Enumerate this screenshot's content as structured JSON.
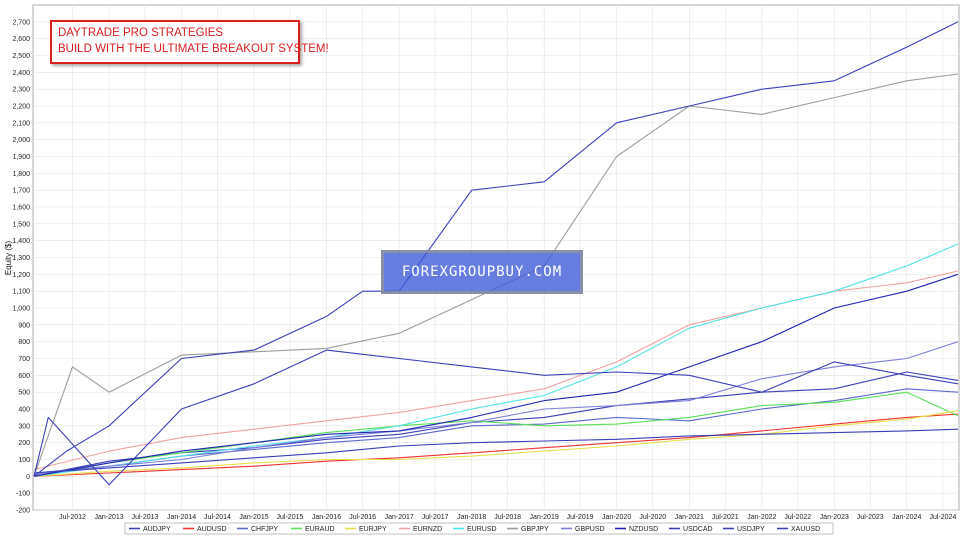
{
  "chart_data": {
    "type": "line",
    "title": "",
    "xlabel": "",
    "ylabel": "Equity ($)",
    "ylim": [
      -200,
      2800
    ],
    "yticks": [
      -200,
      -100,
      0,
      100,
      200,
      300,
      400,
      500,
      600,
      700,
      800,
      900,
      1000,
      1100,
      1200,
      1300,
      1400,
      1500,
      1600,
      1700,
      1800,
      1900,
      2000,
      2100,
      2200,
      2300,
      2400,
      2500,
      2600,
      2700
    ],
    "ytick_labels": [
      "-200",
      "-100",
      "0",
      "100",
      "200",
      "300",
      "400",
      "500",
      "600",
      "700",
      "800",
      "900",
      "1,000",
      "1,100",
      "1,200",
      "1,300",
      "1,400",
      "1,500",
      "1,600",
      "1,700",
      "1,800",
      "1,900",
      "2,000",
      "2,100",
      "2,200",
      "2,300",
      "2,400",
      "2,500",
      "2,600",
      "2,700"
    ],
    "xlim": [
      "2011-12-15",
      "2024-09-20"
    ],
    "xticks": [
      "2012-07-01",
      "2013-01-01",
      "2013-07-01",
      "2014-01-01",
      "2014-07-01",
      "2015-01-01",
      "2015-07-01",
      "2016-01-01",
      "2016-07-01",
      "2017-01-01",
      "2017-07-01",
      "2018-01-01",
      "2018-07-01",
      "2019-01-01",
      "2019-07-01",
      "2020-01-01",
      "2020-07-01",
      "2021-01-01",
      "2021-07-01",
      "2022-01-01",
      "2022-07-01",
      "2023-01-01",
      "2023-07-01",
      "2024-01-01",
      "2024-07-01"
    ],
    "xtick_labels": [
      "Jul-2012",
      "Jan-2013",
      "Jul-2013",
      "Jan-2014",
      "Jul-2014",
      "Jan-2015",
      "Jul-2015",
      "Jan-2016",
      "Jul-2016",
      "Jan-2017",
      "Jul-2017",
      "Jan-2018",
      "Jul-2018",
      "Jan-2019",
      "Jul-2019",
      "Jan-2020",
      "Jul-2020",
      "Jan-2021",
      "Jul-2021",
      "Jan-2022",
      "Jul-2022",
      "Jan-2023",
      "Jul-2023",
      "Jan-2024",
      "Jul-2024"
    ],
    "grid": true,
    "legend_position": "bottom",
    "series": [
      {
        "name": "AUDJPY",
        "color": "#3b3fb8",
        "x": [
          "2011-12-20",
          "2012-06-01",
          "2013-01-01",
          "2014-01-01",
          "2015-01-01",
          "2016-01-01",
          "2017-01-01",
          "2018-01-01",
          "2019-01-01",
          "2020-01-01",
          "2021-01-01",
          "2022-01-01",
          "2023-01-01",
          "2024-01-01",
          "2024-09-15"
        ],
        "values": [
          0,
          40,
          90,
          140,
          170,
          220,
          250,
          320,
          350,
          420,
          460,
          500,
          520,
          620,
          570
        ]
      },
      {
        "name": "AUDUSD",
        "color": "#ee3333",
        "x": [
          "2011-12-20",
          "2013-01-01",
          "2014-01-01",
          "2015-01-01",
          "2016-01-01",
          "2017-01-01",
          "2018-01-01",
          "2019-01-01",
          "2020-01-01",
          "2021-01-01",
          "2022-01-01",
          "2023-01-01",
          "2024-01-01",
          "2024-09-15"
        ],
        "values": [
          0,
          20,
          40,
          60,
          90,
          110,
          140,
          170,
          200,
          230,
          270,
          310,
          350,
          370
        ]
      },
      {
        "name": "CHFJPY",
        "color": "#5a6acc",
        "x": [
          "2011-12-20",
          "2013-01-01",
          "2014-01-01",
          "2015-01-01",
          "2016-01-01",
          "2017-01-01",
          "2018-01-01",
          "2019-01-01",
          "2020-01-01",
          "2021-01-01",
          "2022-01-01",
          "2023-01-01",
          "2024-01-01",
          "2024-09-15"
        ],
        "values": [
          20,
          60,
          120,
          160,
          200,
          230,
          300,
          310,
          350,
          330,
          400,
          450,
          520,
          500
        ]
      },
      {
        "name": "EURAUD",
        "color": "#59e059",
        "x": [
          "2011-12-20",
          "2013-01-01",
          "2014-01-01",
          "2015-01-01",
          "2016-01-01",
          "2017-01-01",
          "2018-01-01",
          "2019-01-01",
          "2020-01-01",
          "2021-01-01",
          "2022-01-01",
          "2023-01-01",
          "2024-01-01",
          "2024-09-15"
        ],
        "values": [
          0,
          80,
          140,
          200,
          260,
          300,
          330,
          300,
          310,
          350,
          420,
          440,
          500,
          360
        ]
      },
      {
        "name": "EURJPY",
        "color": "#e8e04a",
        "x": [
          "2011-12-20",
          "2013-01-01",
          "2014-01-01",
          "2015-01-01",
          "2016-01-01",
          "2017-01-01",
          "2018-01-01",
          "2019-01-01",
          "2020-01-01",
          "2021-01-01",
          "2022-01-01",
          "2023-01-01",
          "2024-01-01",
          "2024-09-15"
        ],
        "values": [
          0,
          30,
          50,
          80,
          100,
          100,
          120,
          150,
          180,
          220,
          250,
          300,
          340,
          390
        ]
      },
      {
        "name": "EURNZD",
        "color": "#f0a2a2",
        "x": [
          "2011-12-20",
          "2013-01-01",
          "2014-01-01",
          "2015-01-01",
          "2016-01-01",
          "2017-01-01",
          "2018-01-01",
          "2019-01-01",
          "2020-01-01",
          "2021-01-01",
          "2022-01-01",
          "2023-01-01",
          "2024-01-01",
          "2024-09-15"
        ],
        "values": [
          40,
          150,
          230,
          280,
          330,
          380,
          450,
          520,
          680,
          900,
          1000,
          1100,
          1150,
          1220
        ]
      },
      {
        "name": "EURUSD",
        "color": "#50e3e3",
        "x": [
          "2011-12-20",
          "2013-01-01",
          "2014-01-01",
          "2015-01-01",
          "2016-01-01",
          "2017-01-01",
          "2018-01-01",
          "2019-01-01",
          "2020-01-01",
          "2021-01-01",
          "2022-01-01",
          "2023-01-01",
          "2024-01-01",
          "2024-09-15"
        ],
        "values": [
          0,
          60,
          120,
          180,
          230,
          300,
          400,
          480,
          650,
          880,
          1000,
          1100,
          1250,
          1380
        ]
      },
      {
        "name": "GBPJPY",
        "color": "#9d9d9d",
        "x": [
          "2011-12-20",
          "2012-07-01",
          "2013-01-01",
          "2014-01-01",
          "2015-01-01",
          "2016-01-01",
          "2017-01-01",
          "2018-01-01",
          "2019-01-01",
          "2020-01-01",
          "2021-01-01",
          "2022-01-01",
          "2023-01-01",
          "2024-01-01",
          "2024-09-15"
        ],
        "values": [
          0,
          650,
          500,
          720,
          740,
          760,
          850,
          1050,
          1250,
          1900,
          2200,
          2150,
          2250,
          2350,
          2390
        ]
      },
      {
        "name": "GBPUSD",
        "color": "#7f7fdc",
        "x": [
          "2011-12-20",
          "2013-01-01",
          "2014-01-01",
          "2015-01-01",
          "2016-01-01",
          "2017-01-01",
          "2018-01-01",
          "2019-01-01",
          "2020-01-01",
          "2021-01-01",
          "2022-01-01",
          "2023-01-01",
          "2024-01-01",
          "2024-09-15"
        ],
        "values": [
          10,
          60,
          100,
          170,
          230,
          270,
          320,
          400,
          420,
          450,
          580,
          650,
          700,
          800
        ]
      },
      {
        "name": "NZDUSD",
        "color": "#1f25b2",
        "x": [
          "2011-12-20",
          "2013-01-01",
          "2014-01-01",
          "2015-01-01",
          "2016-01-01",
          "2017-01-01",
          "2018-01-01",
          "2019-01-01",
          "2020-01-01",
          "2021-01-01",
          "2022-01-01",
          "2023-01-01",
          "2024-01-01",
          "2024-09-15"
        ],
        "values": [
          0,
          80,
          150,
          200,
          250,
          270,
          350,
          450,
          500,
          650,
          800,
          1000,
          1100,
          1200
        ]
      },
      {
        "name": "USDCAD",
        "color": "#3b3fb8",
        "x": [
          "2011-12-20",
          "2013-01-01",
          "2014-01-01",
          "2015-01-01",
          "2016-01-01",
          "2017-01-01",
          "2018-01-01",
          "2019-01-01",
          "2020-01-01",
          "2021-01-01",
          "2022-01-01",
          "2023-01-01",
          "2024-01-01",
          "2024-09-15"
        ],
        "values": [
          20,
          50,
          80,
          110,
          140,
          180,
          200,
          210,
          220,
          240,
          250,
          260,
          270,
          280
        ]
      },
      {
        "name": "USDJPY",
        "color": "#3b3fb8",
        "x": [
          "2011-12-20",
          "2012-03-01",
          "2013-01-01",
          "2014-01-01",
          "2015-01-01",
          "2016-01-01",
          "2017-01-01",
          "2018-01-01",
          "2019-01-01",
          "2020-01-01",
          "2021-01-01",
          "2022-01-01",
          "2023-01-01",
          "2024-01-01",
          "2024-09-15"
        ],
        "values": [
          0,
          350,
          -50,
          400,
          550,
          750,
          700,
          650,
          600,
          620,
          600,
          500,
          680,
          600,
          550
        ]
      },
      {
        "name": "XAUUSD",
        "color": "#3b3fb8",
        "x": [
          "2011-12-20",
          "2012-06-01",
          "2013-01-01",
          "2014-01-01",
          "2015-01-01",
          "2016-01-01",
          "2016-07-01",
          "2017-01-01",
          "2018-01-01",
          "2019-01-01",
          "2020-01-01",
          "2021-01-01",
          "2022-01-01",
          "2023-01-01",
          "2024-01-01",
          "2024-09-15"
        ],
        "values": [
          0,
          150,
          300,
          700,
          750,
          950,
          1100,
          1100,
          1700,
          1750,
          2100,
          2200,
          2300,
          2350,
          2550,
          2700
        ]
      }
    ]
  },
  "promo": {
    "line1": "DAYTRADE PRO STRATEGIES",
    "line2": "BUILD WITH THE ULTIMATE BREAKOUT SYSTEM!"
  },
  "watermark": {
    "text": "FOREXGROUPBUY.COM"
  }
}
